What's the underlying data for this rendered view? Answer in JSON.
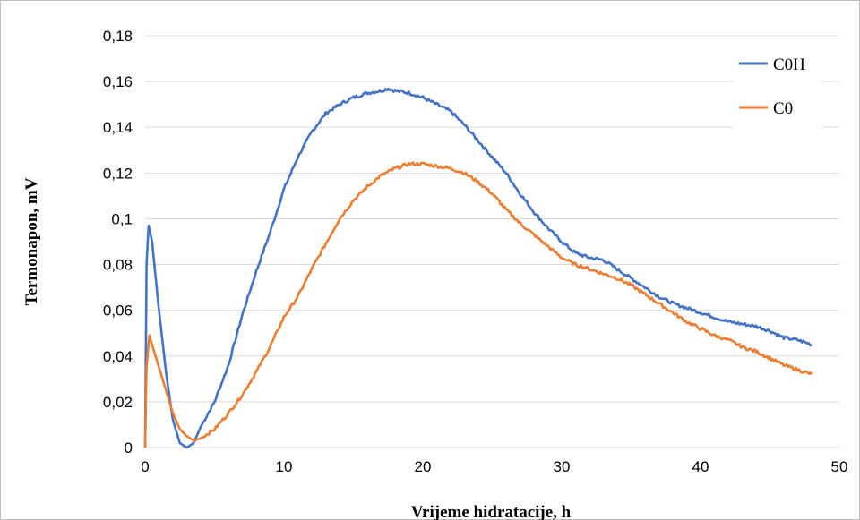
{
  "chart_data": {
    "type": "line",
    "xlabel": "Vrijeme hidratacije, h",
    "ylabel": "Termonapon, mV",
    "xlim": [
      0,
      50
    ],
    "ylim": [
      0,
      0.18
    ],
    "x_ticks": [
      "0",
      "10",
      "20",
      "30",
      "40",
      "50"
    ],
    "y_ticks": [
      "0",
      "0,02",
      "0,04",
      "0,06",
      "0,08",
      "0,1",
      "0,12",
      "0,14",
      "0,16",
      "0,18"
    ],
    "grid": "horizontal",
    "legend_position": "top-right",
    "series": [
      {
        "name": "C0H",
        "color": "#4472C4",
        "points": [
          [
            0,
            0
          ],
          [
            0.1,
            0.08
          ],
          [
            0.25,
            0.097
          ],
          [
            0.5,
            0.09
          ],
          [
            1,
            0.06
          ],
          [
            1.5,
            0.033
          ],
          [
            2,
            0.012
          ],
          [
            2.5,
            0.002
          ],
          [
            3,
            0
          ],
          [
            3.5,
            0.002
          ],
          [
            4,
            0.009
          ],
          [
            5,
            0.02
          ],
          [
            6,
            0.036
          ],
          [
            7,
            0.058
          ],
          [
            8,
            0.077
          ],
          [
            9,
            0.094
          ],
          [
            10,
            0.113
          ],
          [
            11,
            0.127
          ],
          [
            12,
            0.138
          ],
          [
            13,
            0.146
          ],
          [
            14,
            0.15
          ],
          [
            15,
            0.153
          ],
          [
            16,
            0.155
          ],
          [
            17,
            0.156
          ],
          [
            17.5,
            0.157
          ],
          [
            18,
            0.156
          ],
          [
            19,
            0.155
          ],
          [
            20,
            0.153
          ],
          [
            21,
            0.15
          ],
          [
            22,
            0.147
          ],
          [
            23,
            0.141
          ],
          [
            24,
            0.134
          ],
          [
            25,
            0.127
          ],
          [
            26,
            0.12
          ],
          [
            27,
            0.111
          ],
          [
            28,
            0.103
          ],
          [
            29,
            0.096
          ],
          [
            30,
            0.09
          ],
          [
            31,
            0.085
          ],
          [
            32,
            0.083
          ],
          [
            33,
            0.082
          ],
          [
            34,
            0.078
          ],
          [
            35,
            0.074
          ],
          [
            36,
            0.07
          ],
          [
            37,
            0.066
          ],
          [
            38,
            0.063
          ],
          [
            39,
            0.061
          ],
          [
            40,
            0.059
          ],
          [
            41,
            0.057
          ],
          [
            42,
            0.055
          ],
          [
            43,
            0.054
          ],
          [
            44,
            0.053
          ],
          [
            45,
            0.051
          ],
          [
            46,
            0.048
          ],
          [
            47,
            0.047
          ],
          [
            48,
            0.045
          ]
        ]
      },
      {
        "name": "C0",
        "color": "#ED7D31",
        "points": [
          [
            0,
            0
          ],
          [
            0.1,
            0.035
          ],
          [
            0.3,
            0.049
          ],
          [
            0.6,
            0.043
          ],
          [
            1,
            0.035
          ],
          [
            1.5,
            0.025
          ],
          [
            2,
            0.015
          ],
          [
            2.5,
            0.008
          ],
          [
            3,
            0.005
          ],
          [
            3.5,
            0.003
          ],
          [
            4,
            0.004
          ],
          [
            5,
            0.008
          ],
          [
            6,
            0.015
          ],
          [
            7,
            0.023
          ],
          [
            8,
            0.033
          ],
          [
            9,
            0.044
          ],
          [
            10,
            0.057
          ],
          [
            11,
            0.066
          ],
          [
            12,
            0.078
          ],
          [
            13,
            0.089
          ],
          [
            14,
            0.1
          ],
          [
            15,
            0.108
          ],
          [
            16,
            0.114
          ],
          [
            17,
            0.119
          ],
          [
            18,
            0.122
          ],
          [
            19,
            0.124
          ],
          [
            20,
            0.124
          ],
          [
            21,
            0.123
          ],
          [
            22,
            0.122
          ],
          [
            23,
            0.12
          ],
          [
            24,
            0.116
          ],
          [
            25,
            0.111
          ],
          [
            26,
            0.104
          ],
          [
            27,
            0.098
          ],
          [
            28,
            0.093
          ],
          [
            29,
            0.088
          ],
          [
            30,
            0.083
          ],
          [
            31,
            0.08
          ],
          [
            32,
            0.078
          ],
          [
            33,
            0.076
          ],
          [
            34,
            0.074
          ],
          [
            35,
            0.071
          ],
          [
            36,
            0.067
          ],
          [
            37,
            0.063
          ],
          [
            38,
            0.059
          ],
          [
            39,
            0.055
          ],
          [
            40,
            0.052
          ],
          [
            41,
            0.049
          ],
          [
            42,
            0.047
          ],
          [
            43,
            0.044
          ],
          [
            44,
            0.042
          ],
          [
            45,
            0.039
          ],
          [
            46,
            0.036
          ],
          [
            47,
            0.034
          ],
          [
            48,
            0.032
          ]
        ]
      }
    ]
  }
}
